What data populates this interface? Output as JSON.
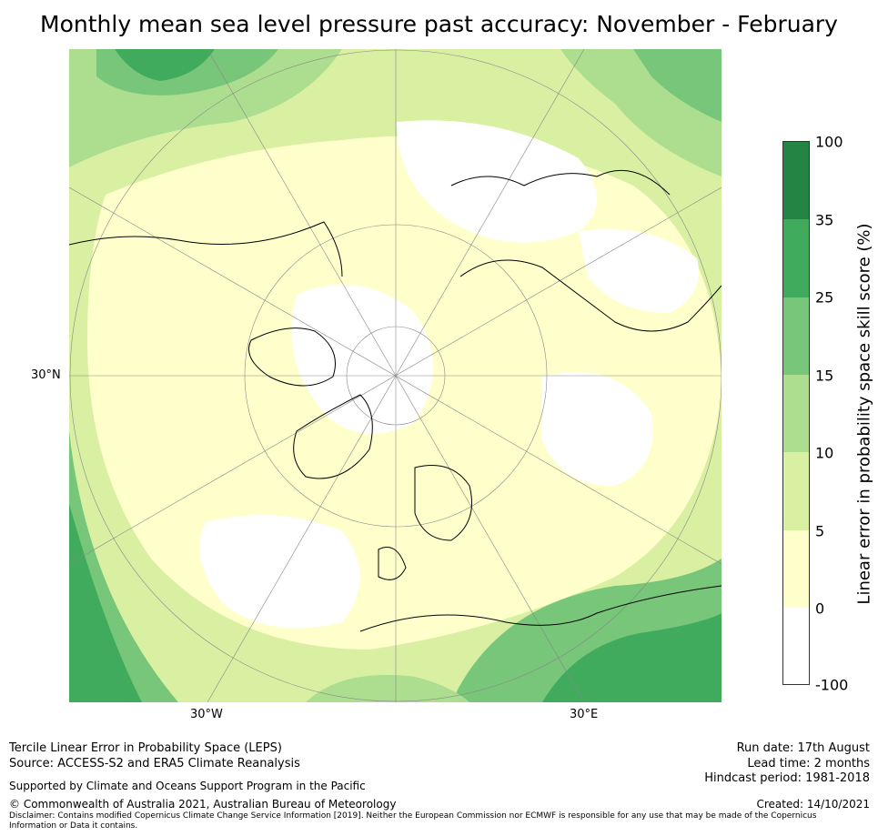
{
  "title": "Monthly mean sea level pressure past accuracy: November - February",
  "map": {
    "projection": "north-polar-stereographic",
    "lat_labels": [
      "30°N"
    ],
    "lon_labels": [
      "30°W",
      "30°E"
    ],
    "colors": {
      "white": "#ffffff",
      "pale_yellow": "#ffffcc",
      "light_yellowgreen": "#d9f0a3",
      "light_green": "#addd8e",
      "medium_green": "#78c679",
      "green": "#41ab5d",
      "dark_green": "#238443"
    }
  },
  "colorbar": {
    "label": "Linear error in probability space skill score (%)",
    "ticks": [
      "100",
      "35",
      "25",
      "15",
      "10",
      "5",
      "0",
      "-100"
    ],
    "bins": [
      {
        "from": "35",
        "to": "100",
        "color": "#238443"
      },
      {
        "from": "25",
        "to": "35",
        "color": "#41ab5d"
      },
      {
        "from": "15",
        "to": "25",
        "color": "#78c679"
      },
      {
        "from": "10",
        "to": "15",
        "color": "#addd8e"
      },
      {
        "from": "5",
        "to": "10",
        "color": "#d9f0a3"
      },
      {
        "from": "0",
        "to": "5",
        "color": "#ffffcc"
      },
      {
        "from": "-100",
        "to": "0",
        "color": "#ffffff"
      }
    ]
  },
  "footer": {
    "method": "Tercile Linear Error in Probability Space (LEPS)",
    "source": "Source: ACCESS-S2 and ERA5 Climate Reanalysis",
    "support": "Supported by Climate and Oceans Support Program in the Pacific",
    "copyright": "© Commonwealth of Australia 2021, Australian Bureau of Meteorology",
    "disclaimer": "Disclaimer: Contains modified Copernicus Climate Change Service Information [2019]. Neither the European Commission nor ECMWF is responsible for any use that may be made of the Copernicus Information or Data it contains.",
    "run_date": "Run date: 17th August",
    "lead_time": "Lead time: 2 months",
    "hindcast": "Hindcast period: 1981-2018",
    "created": "Created: 14/10/2021"
  }
}
